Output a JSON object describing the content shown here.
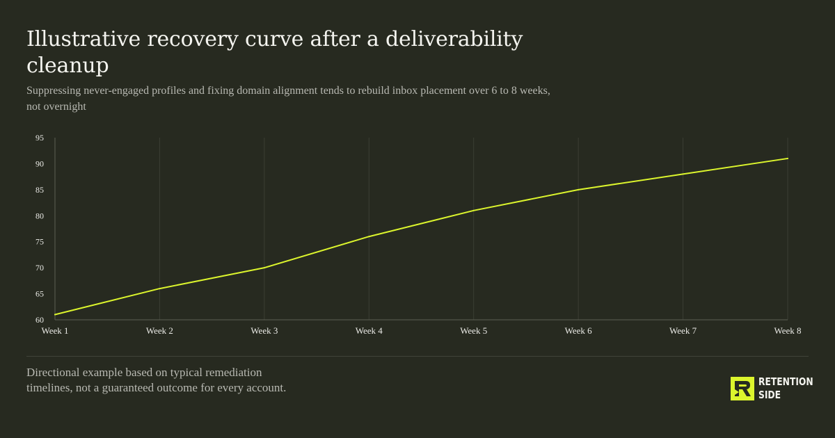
{
  "header": {
    "title": "Illustrative recovery curve after a deliverability cleanup",
    "subtitle": "Suppressing never-engaged profiles and fixing domain alignment tends to rebuild inbox placement over 6 to 8 weeks, not overnight"
  },
  "footer": {
    "note": "Directional example based on typical remediation timelines, not a guaranteed outcome for every account."
  },
  "brand": {
    "line1": "RETENTION",
    "line2": "SIDE",
    "logo_icon": "retention-side-r-logo-icon"
  },
  "colors": {
    "background": "#272a20",
    "line": "#dcf52d",
    "grid": "#3b3e34",
    "axis": "#5d6055",
    "tick_text": "#ecece8"
  },
  "chart_data": {
    "type": "line",
    "title": "Illustrative recovery curve after a deliverability cleanup",
    "xlabel": "",
    "ylabel": "",
    "categories": [
      "Week 1",
      "Week 2",
      "Week 3",
      "Week 4",
      "Week 5",
      "Week 6",
      "Week 7",
      "Week 8"
    ],
    "series": [
      {
        "values": [
          61,
          66,
          70,
          76,
          81,
          85,
          88,
          91
        ]
      }
    ],
    "ylim": [
      60,
      95
    ],
    "yticks": [
      60,
      65,
      70,
      75,
      80,
      85,
      90,
      95
    ],
    "grid": "vertical",
    "legend": "none"
  }
}
